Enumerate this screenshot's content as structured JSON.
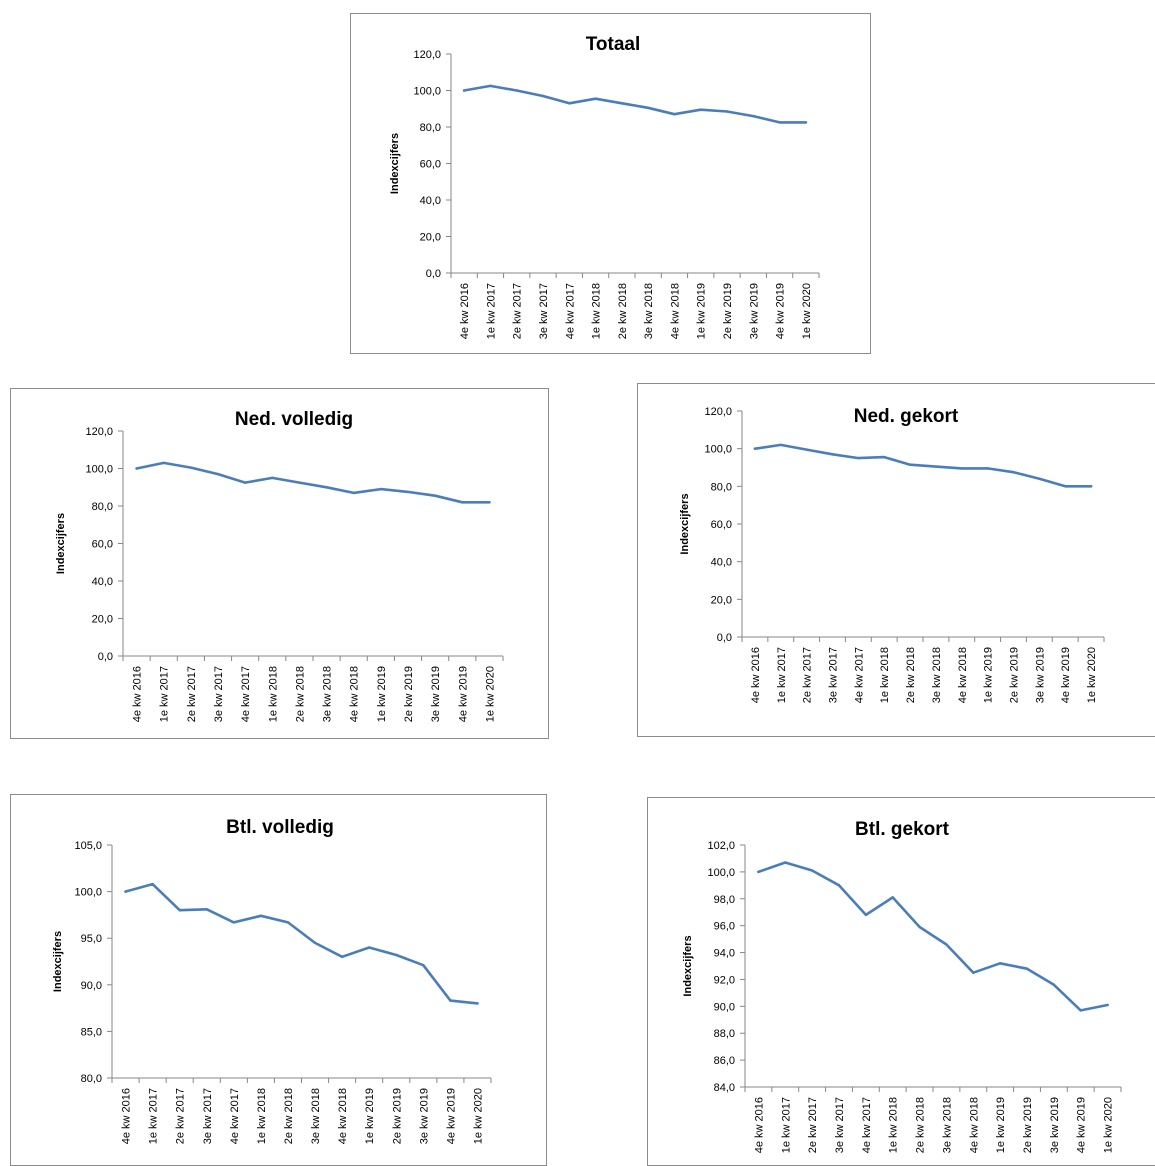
{
  "chart_data": [
    {
      "type": "line",
      "title": "Totaal",
      "ylabel": "Indexcijfers",
      "ylim": [
        0,
        120
      ],
      "yticks": [
        "0,0",
        "20,0",
        "40,0",
        "60,0",
        "80,0",
        "100,0",
        "120,0"
      ],
      "categories": [
        "4e kw 2016",
        "1e kw 2017",
        "2e kw 2017",
        "3e kw 2017",
        "4e kw 2017",
        "1e kw 2018",
        "2e kw 2018",
        "3e kw 2018",
        "4e kw 2018",
        "1e kw 2019",
        "2e kw 2019",
        "3e kw 2019",
        "4e kw 2019",
        "1e kw 2020"
      ],
      "values": [
        100.0,
        102.5,
        100.0,
        97.0,
        93.0,
        95.5,
        93.0,
        90.5,
        87.0,
        89.5,
        88.5,
        86.0,
        82.5,
        82.5
      ],
      "color": "#4a7ebb",
      "grid": false,
      "legend": "none"
    },
    {
      "type": "line",
      "title": "Ned. volledig",
      "ylabel": "Indexcijfers",
      "ylim": [
        0,
        120
      ],
      "yticks": [
        "0,0",
        "20,0",
        "40,0",
        "60,0",
        "80,0",
        "100,0",
        "120,0"
      ],
      "categories": [
        "4e kw 2016",
        "1e kw 2017",
        "2e kw 2017",
        "3e kw 2017",
        "4e kw 2017",
        "1e kw 2018",
        "2e kw 2018",
        "3e kw 2018",
        "4e kw 2018",
        "1e kw 2019",
        "2e kw 2019",
        "3e kw 2019",
        "4e kw 2019",
        "1e kw 2020"
      ],
      "values": [
        100.0,
        103.0,
        100.5,
        97.0,
        92.5,
        95.0,
        92.5,
        90.0,
        87.0,
        89.0,
        87.5,
        85.5,
        82.0,
        82.0
      ],
      "color": "#4a7ebb",
      "grid": false,
      "legend": "none"
    },
    {
      "type": "line",
      "title": "Ned. gekort",
      "ylabel": "Indexcijfers",
      "ylim": [
        0,
        120
      ],
      "yticks": [
        "0,0",
        "20,0",
        "40,0",
        "60,0",
        "80,0",
        "100,0",
        "120,0"
      ],
      "categories": [
        "4e kw 2016",
        "1e kw 2017",
        "2e kw 2017",
        "3e kw 2017",
        "4e kw 2017",
        "1e kw 2018",
        "2e kw 2018",
        "3e kw 2018",
        "4e kw 2018",
        "1e kw 2019",
        "2e kw 2019",
        "3e kw 2019",
        "4e kw 2019",
        "1e kw 2020"
      ],
      "values": [
        100.0,
        102.0,
        99.5,
        97.0,
        95.0,
        95.5,
        91.5,
        90.5,
        89.5,
        89.5,
        87.5,
        84.0,
        80.0,
        80.0
      ],
      "color": "#4a7ebb",
      "grid": false,
      "legend": "none"
    },
    {
      "type": "line",
      "title": "Btl. volledig",
      "ylabel": "Indexcijfers",
      "ylim": [
        80,
        105
      ],
      "yticks": [
        "80,0",
        "85,0",
        "90,0",
        "95,0",
        "100,0",
        "105,0"
      ],
      "categories": [
        "4e kw 2016",
        "1e kw 2017",
        "2e kw 2017",
        "3e kw 2017",
        "4e kw 2017",
        "1e kw 2018",
        "2e kw 2018",
        "3e kw 2018",
        "4e kw 2018",
        "1e kw 2019",
        "2e kw 2019",
        "3e kw 2019",
        "4e kw 2019",
        "1e kw 2020"
      ],
      "values": [
        100.0,
        100.8,
        98.0,
        98.1,
        96.7,
        97.4,
        96.7,
        94.5,
        93.0,
        94.0,
        93.2,
        92.1,
        88.3,
        88.0
      ],
      "color": "#4a7ebb",
      "grid": false,
      "legend": "none"
    },
    {
      "type": "line",
      "title": "Btl. gekort",
      "ylabel": "Indexcijfers",
      "ylim": [
        84,
        102
      ],
      "yticks": [
        "84,0",
        "86,0",
        "88,0",
        "90,0",
        "92,0",
        "94,0",
        "96,0",
        "98,0",
        "100,0",
        "102,0"
      ],
      "categories": [
        "4e kw 2016",
        "1e kw 2017",
        "2e kw 2017",
        "3e kw 2017",
        "4e kw 2017",
        "1e kw 2018",
        "2e kw 2018",
        "3e kw 2018",
        "4e kw 2018",
        "1e kw 2019",
        "2e kw 2019",
        "3e kw 2019",
        "4e kw 2019",
        "1e kw 2020"
      ],
      "values": [
        100.0,
        100.7,
        100.1,
        99.0,
        96.8,
        98.1,
        95.9,
        94.6,
        92.5,
        93.2,
        92.8,
        91.6,
        89.7,
        90.1
      ],
      "color": "#4a7ebb",
      "grid": false,
      "legend": "none"
    }
  ]
}
